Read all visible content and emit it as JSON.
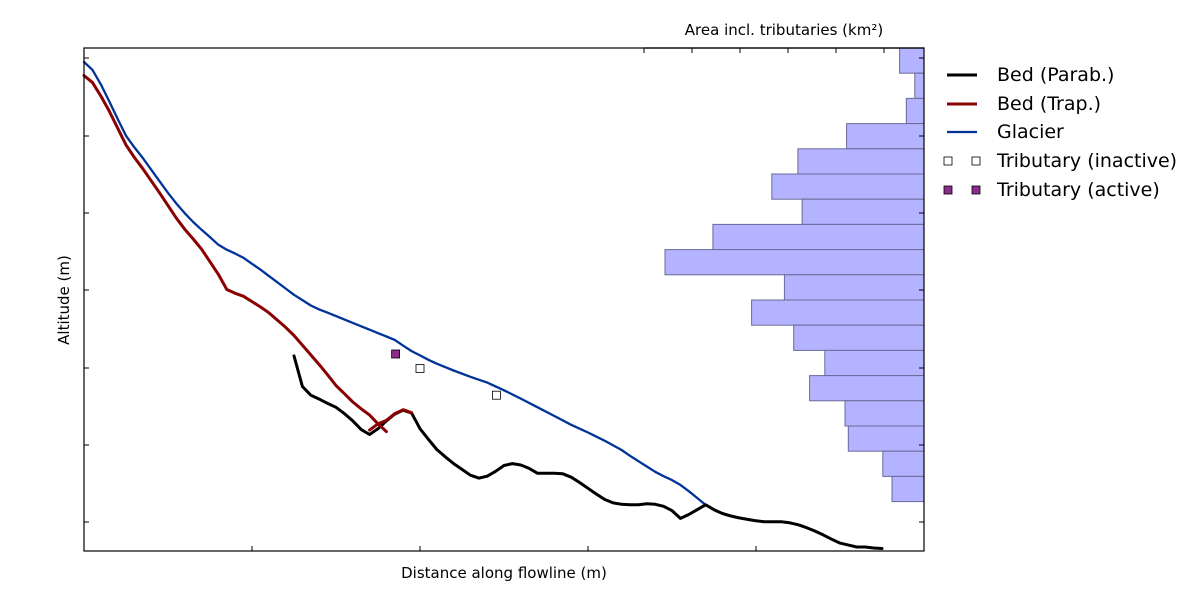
{
  "chart_data": {
    "type": "line",
    "xlabel": "Distance along flowline (m)",
    "ylabel": "Altitude (m)",
    "xlim": [
      0,
      100
    ],
    "ylim": [
      0,
      100
    ],
    "x_tick_labels_shown": false,
    "y_tick_labels_shown": false,
    "grid": false,
    "legend": {
      "placement": "right, outside plot",
      "entries": [
        "Bed (Parab.)",
        "Bed (Trap.)",
        "Glacier",
        "Tributary (inactive)",
        "Tributary (active)"
      ]
    },
    "colors": {
      "bed_parabolic": "#000000",
      "bed_trapezoid": "#8b0000",
      "glacier": "#003399",
      "tributary_inactive": "#ffffff",
      "tributary_active": "#8c2d8c",
      "area_bars": "#b3b3ff",
      "area_bar_edge": "#6a6a9a"
    },
    "series": [
      {
        "name": "Glacier",
        "points": [
          [
            0,
            100
          ],
          [
            1,
            98.4
          ],
          [
            2,
            95.4
          ],
          [
            3,
            91.9
          ],
          [
            4,
            88.3
          ],
          [
            5,
            84.8
          ],
          [
            6,
            82.4
          ],
          [
            7,
            80.2
          ],
          [
            8,
            77.8
          ],
          [
            9,
            75.4
          ],
          [
            10,
            73
          ],
          [
            11,
            70.8
          ],
          [
            12,
            68.8
          ],
          [
            13,
            67
          ],
          [
            14,
            65.4
          ],
          [
            15,
            63.9
          ],
          [
            16,
            62.3
          ],
          [
            17,
            61.3
          ],
          [
            18,
            60.5
          ],
          [
            19,
            59.6
          ],
          [
            20,
            58.4
          ],
          [
            21,
            57.2
          ],
          [
            22,
            55.9
          ],
          [
            23,
            54.6
          ],
          [
            24,
            53.3
          ],
          [
            25,
            52
          ],
          [
            26,
            50.9
          ],
          [
            27,
            49.8
          ],
          [
            28,
            49
          ],
          [
            29,
            48.3
          ],
          [
            30,
            47.6
          ],
          [
            32,
            46.2
          ],
          [
            34,
            44.8
          ],
          [
            36,
            43.4
          ],
          [
            37,
            42.7
          ],
          [
            38,
            41.5
          ],
          [
            39,
            40.4
          ],
          [
            40,
            39.5
          ],
          [
            41,
            38.6
          ],
          [
            42,
            37.8
          ],
          [
            44,
            36.4
          ],
          [
            46,
            35.1
          ],
          [
            48,
            33.9
          ],
          [
            50,
            32.3
          ],
          [
            52,
            30.6
          ],
          [
            54,
            28.8
          ],
          [
            56,
            27
          ],
          [
            58,
            25.2
          ],
          [
            60,
            23.6
          ],
          [
            62,
            21.9
          ],
          [
            64,
            20
          ],
          [
            65,
            18.8
          ],
          [
            66,
            17.7
          ],
          [
            67,
            16.6
          ],
          [
            68,
            15.5
          ],
          [
            69,
            14.6
          ],
          [
            70,
            13.8
          ],
          [
            71,
            12.8
          ],
          [
            72,
            11.5
          ],
          [
            73,
            10.1
          ],
          [
            73.9,
            8.8
          ]
        ]
      },
      {
        "name": "Bed (Trap.) segment 1",
        "points": [
          [
            0,
            97.2
          ],
          [
            1,
            95.8
          ],
          [
            2,
            93
          ],
          [
            3,
            89.9
          ],
          [
            4,
            86.4
          ],
          [
            5,
            82.9
          ],
          [
            6,
            80.3
          ],
          [
            7,
            78
          ],
          [
            8,
            75.5
          ],
          [
            9,
            73
          ],
          [
            10,
            70.4
          ],
          [
            11,
            67.8
          ],
          [
            12,
            65.5
          ],
          [
            13,
            63.5
          ],
          [
            14,
            61.4
          ],
          [
            15,
            58.8
          ],
          [
            16,
            56.2
          ],
          [
            17,
            53.1
          ],
          [
            18,
            52.3
          ],
          [
            19,
            51.7
          ],
          [
            20,
            50.6
          ],
          [
            21,
            49.5
          ],
          [
            22,
            48.3
          ],
          [
            23,
            46.8
          ],
          [
            24,
            45.3
          ],
          [
            25,
            43.6
          ],
          [
            26,
            41.6
          ],
          [
            27,
            39.6
          ],
          [
            28,
            37.6
          ],
          [
            29,
            35.5
          ],
          [
            30,
            33.3
          ],
          [
            31,
            31.6
          ],
          [
            32,
            29.9
          ],
          [
            33,
            28.5
          ],
          [
            34,
            27.2
          ],
          [
            35,
            25.4
          ],
          [
            36,
            23.8
          ]
        ]
      },
      {
        "name": "Bed (Trap.) segment 2",
        "points": [
          [
            34,
            24.1
          ],
          [
            35,
            25.4
          ],
          [
            36,
            26.1
          ],
          [
            37,
            27.5
          ],
          [
            38,
            28.3
          ],
          [
            39,
            27.7
          ]
        ]
      },
      {
        "name": "Bed (Parab.)",
        "points": [
          [
            25,
            39.4
          ],
          [
            26,
            33.1
          ],
          [
            27,
            31.3
          ],
          [
            28,
            30.5
          ],
          [
            29,
            29.6
          ],
          [
            30,
            28.8
          ],
          [
            31,
            27.5
          ],
          [
            32,
            26
          ],
          [
            33,
            24.2
          ],
          [
            34,
            23.2
          ],
          [
            35,
            24.4
          ],
          [
            36,
            26
          ],
          [
            37,
            27.4
          ],
          [
            38,
            28.2
          ],
          [
            39,
            27.6
          ],
          [
            40,
            24.4
          ],
          [
            41,
            22.2
          ],
          [
            42,
            20.1
          ],
          [
            43,
            18.6
          ],
          [
            44,
            17.2
          ],
          [
            45,
            16
          ],
          [
            46,
            14.8
          ],
          [
            47,
            14.2
          ],
          [
            48,
            14.6
          ],
          [
            49,
            15.6
          ],
          [
            50,
            16.8
          ],
          [
            51,
            17.2
          ],
          [
            52,
            16.9
          ],
          [
            53,
            16.2
          ],
          [
            54,
            15.2
          ],
          [
            55,
            15.2
          ],
          [
            56,
            15.2
          ],
          [
            57,
            15.1
          ],
          [
            58,
            14.4
          ],
          [
            59,
            13.3
          ],
          [
            60,
            12.1
          ],
          [
            61,
            10.9
          ],
          [
            62,
            9.8
          ],
          [
            63,
            9.1
          ],
          [
            64,
            8.8
          ],
          [
            65,
            8.7
          ],
          [
            66,
            8.7
          ],
          [
            67,
            8.9
          ],
          [
            68,
            8.8
          ],
          [
            69,
            8.4
          ],
          [
            70,
            7.5
          ],
          [
            71,
            5.9
          ],
          [
            72,
            6.7
          ],
          [
            73,
            7.7
          ],
          [
            74,
            8.7
          ],
          [
            75,
            7.7
          ],
          [
            76,
            6.9
          ],
          [
            77,
            6.4
          ],
          [
            78,
            6
          ],
          [
            79,
            5.7
          ],
          [
            80,
            5.4
          ],
          [
            81,
            5.2
          ],
          [
            82,
            5.2
          ],
          [
            83,
            5.2
          ],
          [
            84,
            5
          ],
          [
            85,
            4.6
          ],
          [
            86,
            4
          ],
          [
            87,
            3.3
          ],
          [
            88,
            2.5
          ],
          [
            89,
            1.6
          ],
          [
            90,
            0.8
          ],
          [
            91,
            0.4
          ],
          [
            92,
            0
          ],
          [
            93,
            0
          ],
          [
            94,
            -0.2
          ],
          [
            95,
            -0.3
          ]
        ]
      },
      {
        "name": "Tributary (active)",
        "points": [
          [
            37.1,
            39.8
          ]
        ]
      },
      {
        "name": "Tributary (inactive)",
        "points": [
          [
            40,
            36.8
          ],
          [
            49.1,
            31.3
          ]
        ]
      }
    ],
    "area_histogram": {
      "xlabel": "Area incl. tributaries (km²)",
      "orientation": "horizontal",
      "tick_labels_shown": false,
      "bins_top_to_bottom_km2_relative": [
        2.9,
        1.1,
        2.1,
        9.2,
        15,
        18.1,
        14.5,
        25.1,
        30.8,
        16.6,
        20.5,
        15.5,
        11.8,
        13.6,
        9.4,
        9,
        4.9,
        3.8
      ]
    }
  }
}
